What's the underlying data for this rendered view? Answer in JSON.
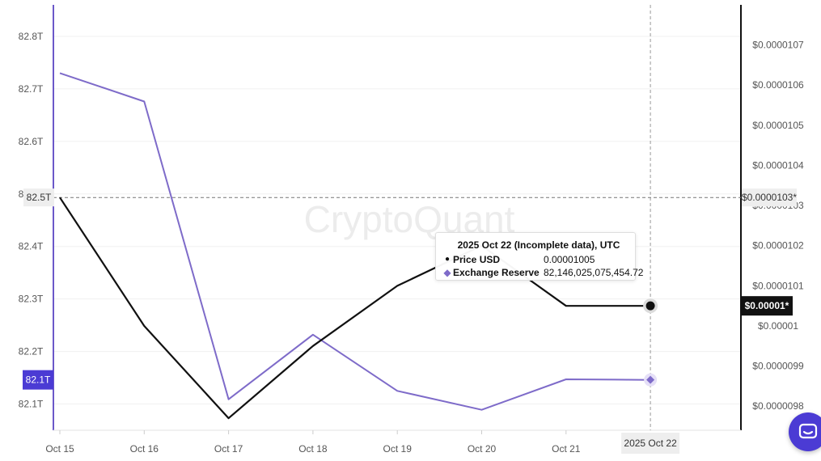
{
  "chart_data": {
    "type": "line",
    "watermark": "CryptoQuant",
    "categories": [
      "Oct 15",
      "Oct 16",
      "Oct 17",
      "Oct 18",
      "Oct 19",
      "Oct 20",
      "Oct 21",
      "2025 Oct 22"
    ],
    "x_tick_labels": [
      "Oct 15",
      "Oct 16",
      "Oct 17",
      "Oct 18",
      "Oct 19",
      "Oct 20",
      "Oct 21"
    ],
    "crosshair_x_label": "2025 Oct 22",
    "left_axis": {
      "ticks": [
        {
          "value": 82.1,
          "label": "82.1T"
        },
        {
          "value": 82.2,
          "label": "82.2T"
        },
        {
          "value": 82.3,
          "label": "82.3T"
        },
        {
          "value": 82.4,
          "label": "82.4T"
        },
        {
          "value": 82.5,
          "label": "82.5T"
        },
        {
          "value": 82.6,
          "label": "82.6T"
        },
        {
          "value": 82.7,
          "label": "82.7T"
        },
        {
          "value": 82.8,
          "label": "82.8T"
        }
      ],
      "range": [
        82.05,
        82.86
      ],
      "crosshair_label": "82.5T",
      "current_badge": "82.1T",
      "badge_value": 82.146
    },
    "right_axis": {
      "ticks": [
        {
          "value": 9.8e-06,
          "label": "$0.0000098"
        },
        {
          "value": 9.9e-06,
          "label": "$0.0000099"
        },
        {
          "value": 1e-05,
          "label": "$0.00001"
        },
        {
          "value": 1.01e-05,
          "label": "$0.0000101"
        },
        {
          "value": 1.02e-05,
          "label": "$0.0000102"
        },
        {
          "value": 1.03e-05,
          "label": "$0.0000103"
        },
        {
          "value": 1.04e-05,
          "label": "$0.0000104"
        },
        {
          "value": 1.05e-05,
          "label": "$0.0000105"
        },
        {
          "value": 1.06e-05,
          "label": "$0.0000106"
        },
        {
          "value": 1.07e-05,
          "label": "$0.0000107"
        }
      ],
      "range": [
        9.74e-06,
        1.08e-05
      ],
      "crosshair_label": "$0.0000103*",
      "crosshair_value": 1.032e-05,
      "current_badge": "$0.00001*",
      "badge_value": 1.005e-05
    },
    "series": [
      {
        "name": "Exchange Reserve",
        "axis": "left",
        "color": "#7e6bc9",
        "values": [
          82.73,
          82.676,
          82.109,
          82.232,
          82.125,
          82.089,
          82.147,
          82.146
        ]
      },
      {
        "name": "Price USD",
        "axis": "right",
        "color": "#111111",
        "values": [
          1.032e-05,
          1e-05,
          9.77e-06,
          9.95e-06,
          1.01e-05,
          1.02e-05,
          1.005e-05,
          1.005e-05
        ]
      }
    ]
  },
  "tooltip": {
    "date": "2025 Oct 22",
    "note": "(Incomplete data), UTC",
    "price_label": "Price USD",
    "price_value": "0.00001005",
    "reserve_label": "Exchange Reserve",
    "reserve_value": "82,146,025,075,454.72"
  },
  "colors": {
    "reserve": "#7e6bc9",
    "price": "#111111",
    "left_axis": "#6b58c9",
    "badge": "#4b3bd4",
    "help_button": "#4b3bd4"
  },
  "icons": {
    "help": "chat-bubble-icon"
  }
}
